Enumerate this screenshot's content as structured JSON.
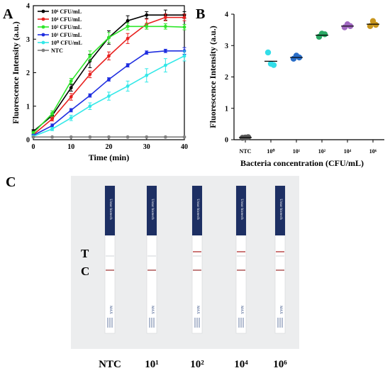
{
  "panels": {
    "a_label": "A",
    "b_label": "B",
    "c_label": "C"
  },
  "colors": {
    "1e6": "#000000",
    "1e4": "#e8211f",
    "1e2": "#2ee62a",
    "1e1": "#1f2ee0",
    "1e0": "#33e8e8",
    "ntc": "#7f7f7f",
    "b_ntc": "#595959",
    "b_1e0": "#33dde8",
    "b_1e1": "#2a6ec8",
    "b_1e2": "#2aa864",
    "b_1e4": "#a068c0",
    "b_1e6": "#c8961e"
  },
  "chart_data": [
    {
      "type": "line",
      "xlabel": "Time (min)",
      "ylabel": "Fluorescence Intensity (a.u.)",
      "xlim": [
        0,
        40
      ],
      "ylim": [
        0,
        4
      ],
      "x_ticks": [
        "0",
        "10",
        "20",
        "30",
        "40"
      ],
      "y_ticks": [
        "0",
        "1",
        "2",
        "3",
        "4"
      ],
      "x": [
        0,
        5,
        10,
        15,
        20,
        25,
        30,
        35,
        40
      ],
      "legend_position": "top-left",
      "series": [
        {
          "name": "10⁶ CFU/mL",
          "color_key": "1e6",
          "values": [
            0.25,
            0.72,
            1.55,
            2.35,
            3.05,
            3.55,
            3.72,
            3.72,
            3.72
          ],
          "errors": [
            0.05,
            0.08,
            0.1,
            0.2,
            0.2,
            0.15,
            0.1,
            0.15,
            0.1
          ]
        },
        {
          "name": "10⁴ CFU/mL",
          "color_key": "1e4",
          "values": [
            0.15,
            0.62,
            1.28,
            1.95,
            2.5,
            3.02,
            3.45,
            3.65,
            3.65
          ],
          "errors": [
            0.05,
            0.06,
            0.1,
            0.1,
            0.12,
            0.15,
            0.15,
            0.1,
            0.1
          ]
        },
        {
          "name": "10² CFU/mL",
          "color_key": "1e2",
          "values": [
            0.2,
            0.78,
            1.75,
            2.5,
            3.05,
            3.38,
            3.38,
            3.38,
            3.36
          ],
          "errors": [
            0.05,
            0.08,
            0.08,
            0.15,
            0.15,
            0.1,
            0.08,
            0.08,
            0.08
          ]
        },
        {
          "name": "10¹ CFU/mL",
          "color_key": "1e1",
          "values": [
            0.13,
            0.42,
            0.88,
            1.32,
            1.8,
            2.22,
            2.6,
            2.65,
            2.65
          ],
          "errors": [
            0.03,
            0.05,
            0.05,
            0.05,
            0.05,
            0.05,
            0.05,
            0.05,
            0.1
          ]
        },
        {
          "name": "10⁰ CFU/mL",
          "color_key": "1e0",
          "values": [
            0.1,
            0.32,
            0.65,
            1.0,
            1.3,
            1.6,
            1.92,
            2.22,
            2.5
          ],
          "errors": [
            0.03,
            0.05,
            0.08,
            0.1,
            0.12,
            0.15,
            0.2,
            0.2,
            0.15
          ]
        },
        {
          "name": "NTC",
          "color_key": "ntc",
          "values": [
            0.08,
            0.08,
            0.08,
            0.08,
            0.08,
            0.08,
            0.08,
            0.08,
            0.08
          ],
          "errors": [
            0,
            0,
            0,
            0,
            0,
            0,
            0,
            0,
            0
          ]
        }
      ]
    },
    {
      "type": "scatter",
      "xlabel": "Bacteria concentration (CFU/mL)",
      "ylabel": "Fluorescence Intensity (a.u.)",
      "ylim": [
        0,
        4
      ],
      "y_ticks": [
        "0",
        "1",
        "2",
        "3",
        "4"
      ],
      "categories": [
        "NTC",
        "10⁰",
        "10¹",
        "10²",
        "10⁴",
        "10⁶"
      ],
      "color_keys": [
        "b_ntc",
        "b_1e0",
        "b_1e1",
        "b_1e2",
        "b_1e4",
        "b_1e6"
      ],
      "means": [
        0.07,
        2.5,
        2.62,
        3.33,
        3.62,
        3.68
      ],
      "points": [
        [
          0.06,
          0.08,
          0.07
        ],
        [
          2.78,
          2.38,
          2.42
        ],
        [
          2.58,
          2.62,
          2.68
        ],
        [
          3.28,
          3.36,
          3.38
        ],
        [
          3.58,
          3.62,
          3.68
        ],
        [
          3.62,
          3.66,
          3.78
        ]
      ]
    }
  ],
  "panel_c": {
    "strip_header_text": "Ustar biotech",
    "t_label": "T",
    "c_label": "C",
    "strip_max_text": "MAX",
    "strips": [
      {
        "label": "NTC",
        "test_line": false
      },
      {
        "label": "10¹",
        "test_line": false
      },
      {
        "label": "10²",
        "test_line": true
      },
      {
        "label": "10⁴",
        "test_line": true
      },
      {
        "label": "10⁶",
        "test_line": true
      }
    ]
  }
}
